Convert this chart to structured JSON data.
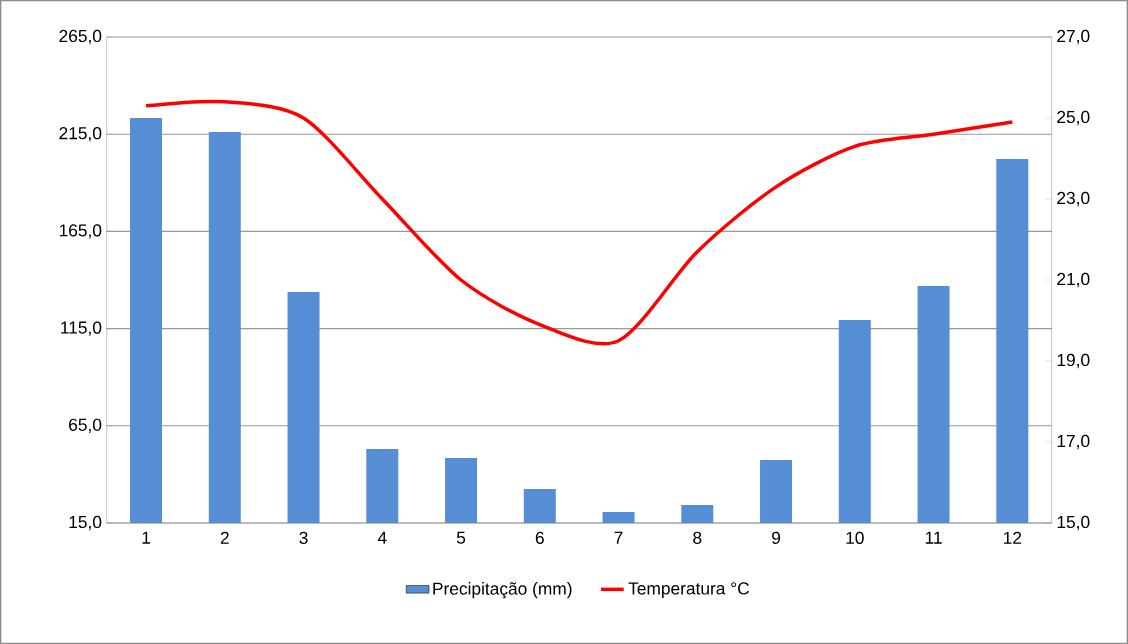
{
  "chart_data": {
    "type": "bar",
    "categories": [
      "1",
      "2",
      "3",
      "4",
      "5",
      "6",
      "7",
      "8",
      "9",
      "10",
      "11",
      "12"
    ],
    "series": [
      {
        "name": "Precipitação (mm)",
        "color": "#558ed5",
        "values": [
          223.3,
          216.1,
          133.8,
          53.1,
          48.4,
          32.5,
          20.7,
          24.3,
          47.4,
          119.4,
          136.9,
          202.2
        ]
      },
      {
        "name": "Temperatura °C",
        "type": "line",
        "axis": "y2",
        "color": "#ff0000",
        "values": [
          25.3,
          25.4,
          25.0,
          23.0,
          21.0,
          19.9,
          19.5,
          21.7,
          23.3,
          24.3,
          24.6,
          24.9
        ]
      }
    ],
    "ylim": [
      15,
      265
    ],
    "yticks": [
      {
        "value": 15,
        "label": "15,0"
      },
      {
        "value": 65,
        "label": "65,0"
      },
      {
        "value": 115,
        "label": "115,0"
      },
      {
        "value": 165,
        "label": "165,0"
      },
      {
        "value": 215,
        "label": "215,0"
      },
      {
        "value": 265,
        "label": "265,0"
      }
    ],
    "y2lim": [
      15,
      27
    ],
    "y2ticks": [
      {
        "value": 15,
        "label": "15,0"
      },
      {
        "value": 17,
        "label": "17,0"
      },
      {
        "value": 19,
        "label": "19,0"
      },
      {
        "value": 21,
        "label": "21,0"
      },
      {
        "value": 23,
        "label": "23,0"
      },
      {
        "value": 25,
        "label": "25,0"
      },
      {
        "value": 27,
        "label": "27,0"
      }
    ],
    "grid": "y",
    "legend": "bottom",
    "marker": "none"
  }
}
